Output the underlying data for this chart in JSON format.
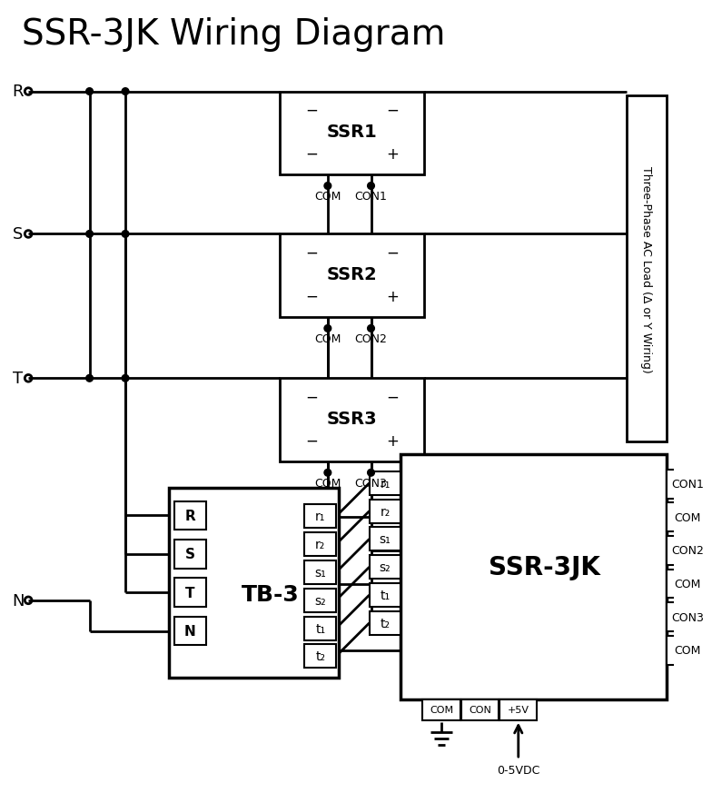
{
  "title": "SSR-3JK Wiring Diagram",
  "bg": "#ffffff",
  "title_fs": 28,
  "phase3_labels": [
    "R",
    "S",
    "T"
  ],
  "phase_n": "N",
  "ssr_labels": [
    "SSR1",
    "SSR2",
    "SSR3"
  ],
  "ssr_com_lbls": [
    "COM",
    "COM",
    "COM"
  ],
  "ssr_con_lbls": [
    "CON1",
    "CON2",
    "CON3"
  ],
  "ac_load_lbl": "Three-Phase AC Load (Δ or Y Wiring)",
  "tb3_lbl": "TB-3",
  "tb3_in": [
    "R",
    "S",
    "T",
    "N"
  ],
  "tb3_out": [
    "r₁",
    "r₂",
    "s₁",
    "s₂",
    "t₁",
    "t₂"
  ],
  "jk_lbl": "SSR-3JK",
  "jk_in": [
    "r₁",
    "r₂",
    "s₁",
    "s₂",
    "t₁",
    "t₂"
  ],
  "jk_out": [
    "CON1",
    "COM",
    "CON2",
    "COM",
    "CON3",
    "COM"
  ],
  "jk_bot": [
    "COM",
    "CON",
    "+5V"
  ],
  "vdc_lbl": "0-5VDC"
}
